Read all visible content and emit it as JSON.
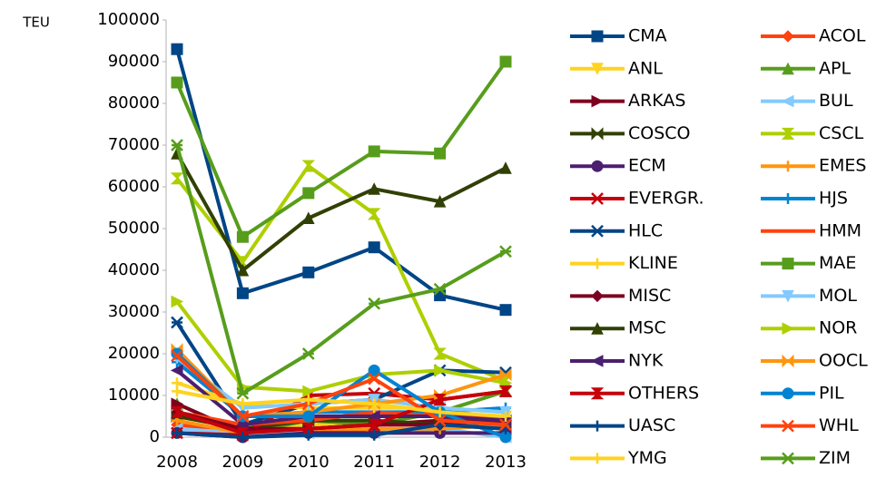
{
  "chart_data": {
    "type": "line",
    "y_label": "TEU",
    "categories": [
      "2008",
      "2009",
      "2010",
      "2011",
      "2012",
      "2013"
    ],
    "ylim": [
      0,
      100000
    ],
    "yticks": [
      0,
      10000,
      20000,
      30000,
      40000,
      50000,
      60000,
      70000,
      80000,
      90000,
      100000
    ],
    "series": [
      {
        "name": "CMA",
        "color": "#004586",
        "marker": "square",
        "values": [
          93000,
          34500,
          39500,
          45500,
          34000,
          30500
        ]
      },
      {
        "name": "ACOL",
        "color": "#ff420e",
        "marker": "diamond",
        "values": [
          3000,
          1000,
          1000,
          2000,
          2000,
          3000
        ]
      },
      {
        "name": "ANL",
        "color": "#ffd320",
        "marker": "tri-down",
        "values": [
          5000,
          2000,
          3000,
          3000,
          4000,
          5000
        ]
      },
      {
        "name": "APL",
        "color": "#579d1c",
        "marker": "tri-up",
        "values": [
          8000,
          1000,
          4000,
          3000,
          6000,
          11000
        ]
      },
      {
        "name": "ARKAS",
        "color": "#7e0021",
        "marker": "tri-right",
        "values": [
          8000,
          1000,
          2000,
          3000,
          4000,
          4000
        ]
      },
      {
        "name": "BUL",
        "color": "#83caff",
        "marker": "tri-left",
        "values": [
          2000,
          1000,
          1000,
          1000,
          2000,
          0
        ]
      },
      {
        "name": "COSCO",
        "color": "#314004",
        "marker": "bowtie",
        "values": [
          5000,
          2000,
          4000,
          4000,
          3000,
          2000
        ]
      },
      {
        "name": "CSCL",
        "color": "#aecf00",
        "marker": "hourglass",
        "values": [
          62000,
          42000,
          65000,
          53500,
          20000,
          13500
        ]
      },
      {
        "name": "ECM",
        "color": "#4b1f6f",
        "marker": "circle",
        "values": [
          1000,
          0,
          1000,
          1000,
          1000,
          1000
        ]
      },
      {
        "name": "EMES",
        "color": "#ff950e",
        "marker": "plus",
        "values": [
          4000,
          1000,
          2000,
          2000,
          2000,
          3000
        ]
      },
      {
        "name": "EVERGR.",
        "color": "#c5000b",
        "marker": "x",
        "values": [
          1000,
          500,
          10000,
          10500,
          9000,
          11000
        ]
      },
      {
        "name": "HJS",
        "color": "#0084d1",
        "marker": "plus",
        "values": [
          18000,
          5000,
          6000,
          6000,
          6000,
          7000
        ]
      },
      {
        "name": "HLC",
        "color": "#004586",
        "marker": "asterisk",
        "values": [
          27500,
          3000,
          8000,
          9000,
          16000,
          15500
        ]
      },
      {
        "name": "HMM",
        "color": "#ff420e",
        "marker": "none",
        "values": [
          6000,
          3000,
          4000,
          6000,
          5000,
          5000
        ]
      },
      {
        "name": "KLINE",
        "color": "#ffd320",
        "marker": "plus",
        "values": [
          13000,
          8000,
          7000,
          7000,
          7000,
          6000
        ]
      },
      {
        "name": "MAE",
        "color": "#579d1c",
        "marker": "square",
        "values": [
          85000,
          48000,
          58500,
          68500,
          68000,
          90000
        ]
      },
      {
        "name": "MISC",
        "color": "#7e0021",
        "marker": "diamond",
        "values": [
          6000,
          2000,
          2000,
          3000,
          3000,
          4000
        ]
      },
      {
        "name": "MOL",
        "color": "#83caff",
        "marker": "tri-down",
        "values": [
          19000,
          7000,
          8000,
          9000,
          7000,
          6000
        ]
      },
      {
        "name": "MSC",
        "color": "#314004",
        "marker": "tri-up",
        "values": [
          68000,
          40000,
          52500,
          59500,
          56500,
          64500
        ]
      },
      {
        "name": "NOR",
        "color": "#aecf00",
        "marker": "tri-right",
        "values": [
          32500,
          12000,
          11000,
          15000,
          16000,
          13000
        ]
      },
      {
        "name": "NYK",
        "color": "#4b1f6f",
        "marker": "tri-left",
        "values": [
          16000,
          3000,
          5000,
          5000,
          5000,
          4000
        ]
      },
      {
        "name": "OOCL",
        "color": "#ff950e",
        "marker": "bowtie",
        "values": [
          21000,
          5000,
          6000,
          8000,
          10000,
          15000
        ]
      },
      {
        "name": "OTHERS",
        "color": "#c5000b",
        "marker": "hourglass",
        "values": [
          6000,
          1000,
          2000,
          3000,
          9000,
          11000
        ]
      },
      {
        "name": "PIL",
        "color": "#0084d1",
        "marker": "circle",
        "values": [
          20000,
          5000,
          5000,
          16000,
          6000,
          0
        ]
      },
      {
        "name": "UASC",
        "color": "#004586",
        "marker": "plus",
        "values": [
          1000,
          0,
          500,
          500,
          3000,
          2000
        ]
      },
      {
        "name": "WHL",
        "color": "#ff420e",
        "marker": "x",
        "values": [
          19500,
          5000,
          8000,
          14000,
          4000,
          3000
        ]
      },
      {
        "name": "YMG",
        "color": "#ffd320",
        "marker": "plus",
        "values": [
          11000,
          8000,
          9000,
          8000,
          6000,
          5000
        ]
      },
      {
        "name": "ZIM",
        "color": "#579d1c",
        "marker": "asterisk",
        "values": [
          70000,
          10500,
          20000,
          32000,
          35500,
          44500
        ]
      }
    ]
  }
}
